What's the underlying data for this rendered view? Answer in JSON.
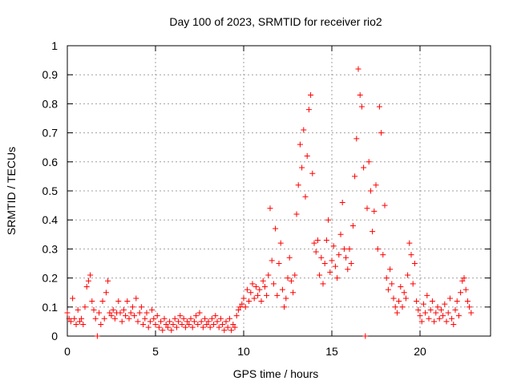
{
  "chart_data": {
    "type": "scatter",
    "title": "Day 100 of 2023, SRMTID for receiver rio2",
    "xlabel": "GPS time / hours",
    "ylabel": "SRMTID / TECUs",
    "xlim": [
      0,
      24
    ],
    "ylim": [
      0,
      1
    ],
    "xticks": [
      0,
      5,
      10,
      15,
      20
    ],
    "yticks": [
      0,
      0.1,
      0.2,
      0.3,
      0.4,
      0.5,
      0.6,
      0.7,
      0.8,
      0.9,
      1
    ],
    "xtick_labels": [
      "0",
      "5",
      "10",
      "15",
      "20"
    ],
    "ytick_labels": [
      "0",
      "0.1",
      "0.2",
      "0.3",
      "0.4",
      "0.5",
      "0.6",
      "0.7",
      "0.8",
      "0.9",
      "1"
    ],
    "grid": true,
    "legend": "none",
    "marker": "plus",
    "color": "#ff0000",
    "series": [
      {
        "name": "SRMTID",
        "points": [
          [
            0.0,
            0.08
          ],
          [
            0.1,
            0.06
          ],
          [
            0.2,
            0.05
          ],
          [
            0.3,
            0.13
          ],
          [
            0.4,
            0.06
          ],
          [
            0.5,
            0.04
          ],
          [
            0.6,
            0.09
          ],
          [
            0.7,
            0.05
          ],
          [
            0.8,
            0.06
          ],
          [
            0.9,
            0.04
          ],
          [
            1.0,
            0.1
          ],
          [
            1.1,
            0.17
          ],
          [
            1.2,
            0.19
          ],
          [
            1.3,
            0.21
          ],
          [
            1.4,
            0.12
          ],
          [
            1.5,
            0.09
          ],
          [
            1.6,
            0.06
          ],
          [
            1.7,
            0.0
          ],
          [
            1.8,
            0.08
          ],
          [
            1.9,
            0.04
          ],
          [
            2.0,
            0.12
          ],
          [
            2.1,
            0.06
          ],
          [
            2.2,
            0.15
          ],
          [
            2.3,
            0.19
          ],
          [
            2.4,
            0.08
          ],
          [
            2.5,
            0.07
          ],
          [
            2.6,
            0.09
          ],
          [
            2.7,
            0.06
          ],
          [
            2.8,
            0.08
          ],
          [
            2.9,
            0.12
          ],
          [
            3.0,
            0.08
          ],
          [
            3.1,
            0.05
          ],
          [
            3.2,
            0.09
          ],
          [
            3.3,
            0.07
          ],
          [
            3.4,
            0.12
          ],
          [
            3.5,
            0.06
          ],
          [
            3.6,
            0.08
          ],
          [
            3.7,
            0.1
          ],
          [
            3.8,
            0.07
          ],
          [
            3.9,
            0.13
          ],
          [
            4.0,
            0.05
          ],
          [
            4.1,
            0.08
          ],
          [
            4.2,
            0.1
          ],
          [
            4.3,
            0.04
          ],
          [
            4.4,
            0.06
          ],
          [
            4.5,
            0.08
          ],
          [
            4.6,
            0.03
          ],
          [
            4.7,
            0.05
          ],
          [
            4.8,
            0.09
          ],
          [
            4.9,
            0.06
          ],
          [
            5.0,
            0.04
          ],
          [
            5.1,
            0.07
          ],
          [
            5.2,
            0.03
          ],
          [
            5.3,
            0.05
          ],
          [
            5.4,
            0.02
          ],
          [
            5.5,
            0.06
          ],
          [
            5.6,
            0.04
          ],
          [
            5.7,
            0.03
          ],
          [
            5.8,
            0.05
          ],
          [
            5.9,
            0.02
          ],
          [
            6.0,
            0.04
          ],
          [
            6.1,
            0.06
          ],
          [
            6.2,
            0.03
          ],
          [
            6.3,
            0.05
          ],
          [
            6.4,
            0.07
          ],
          [
            6.5,
            0.04
          ],
          [
            6.6,
            0.06
          ],
          [
            6.7,
            0.03
          ],
          [
            6.8,
            0.05
          ],
          [
            6.9,
            0.04
          ],
          [
            7.0,
            0.06
          ],
          [
            7.1,
            0.03
          ],
          [
            7.2,
            0.05
          ],
          [
            7.3,
            0.07
          ],
          [
            7.4,
            0.04
          ],
          [
            7.5,
            0.08
          ],
          [
            7.6,
            0.05
          ],
          [
            7.7,
            0.03
          ],
          [
            7.8,
            0.06
          ],
          [
            7.9,
            0.04
          ],
          [
            8.0,
            0.05
          ],
          [
            8.1,
            0.03
          ],
          [
            8.2,
            0.06
          ],
          [
            8.3,
            0.04
          ],
          [
            8.4,
            0.07
          ],
          [
            8.5,
            0.05
          ],
          [
            8.6,
            0.03
          ],
          [
            8.7,
            0.06
          ],
          [
            8.8,
            0.04
          ],
          [
            8.9,
            0.02
          ],
          [
            9.0,
            0.05
          ],
          [
            9.1,
            0.03
          ],
          [
            9.2,
            0.06
          ],
          [
            9.3,
            0.02
          ],
          [
            9.4,
            0.04
          ],
          [
            9.5,
            0.03
          ],
          [
            9.6,
            0.07
          ],
          [
            9.7,
            0.09
          ],
          [
            9.8,
            0.1
          ],
          [
            9.9,
            0.11
          ],
          [
            10.0,
            0.13
          ],
          [
            10.1,
            0.1
          ],
          [
            10.2,
            0.16
          ],
          [
            10.3,
            0.12
          ],
          [
            10.4,
            0.15
          ],
          [
            10.5,
            0.18
          ],
          [
            10.6,
            0.13
          ],
          [
            10.7,
            0.17
          ],
          [
            10.8,
            0.14
          ],
          [
            10.9,
            0.16
          ],
          [
            11.0,
            0.12
          ],
          [
            11.1,
            0.19
          ],
          [
            11.2,
            0.17
          ],
          [
            11.3,
            0.14
          ],
          [
            11.4,
            0.21
          ],
          [
            11.5,
            0.44
          ],
          [
            11.6,
            0.26
          ],
          [
            11.7,
            0.18
          ],
          [
            11.8,
            0.37
          ],
          [
            11.9,
            0.14
          ],
          [
            12.0,
            0.25
          ],
          [
            12.1,
            0.32
          ],
          [
            12.2,
            0.16
          ],
          [
            12.3,
            0.1
          ],
          [
            12.4,
            0.13
          ],
          [
            12.5,
            0.2
          ],
          [
            12.6,
            0.27
          ],
          [
            12.7,
            0.19
          ],
          [
            12.8,
            0.15
          ],
          [
            12.9,
            0.21
          ],
          [
            13.0,
            0.42
          ],
          [
            13.1,
            0.52
          ],
          [
            13.2,
            0.66
          ],
          [
            13.3,
            0.58
          ],
          [
            13.4,
            0.71
          ],
          [
            13.5,
            0.48
          ],
          [
            13.6,
            0.62
          ],
          [
            13.7,
            0.78
          ],
          [
            13.8,
            0.83
          ],
          [
            13.9,
            0.56
          ],
          [
            14.0,
            0.32
          ],
          [
            14.1,
            0.29
          ],
          [
            14.2,
            0.33
          ],
          [
            14.3,
            0.21
          ],
          [
            14.4,
            0.27
          ],
          [
            14.5,
            0.18
          ],
          [
            14.6,
            0.25
          ],
          [
            14.7,
            0.33
          ],
          [
            14.8,
            0.4
          ],
          [
            14.9,
            0.22
          ],
          [
            15.0,
            0.26
          ],
          [
            15.1,
            0.31
          ],
          [
            15.2,
            0.24
          ],
          [
            15.3,
            0.2
          ],
          [
            15.4,
            0.28
          ],
          [
            15.5,
            0.35
          ],
          [
            15.6,
            0.46
          ],
          [
            15.7,
            0.3
          ],
          [
            15.8,
            0.27
          ],
          [
            15.9,
            0.23
          ],
          [
            16.0,
            0.3
          ],
          [
            16.1,
            0.25
          ],
          [
            16.2,
            0.38
          ],
          [
            16.3,
            0.55
          ],
          [
            16.4,
            0.68
          ],
          [
            16.5,
            0.92
          ],
          [
            16.6,
            0.83
          ],
          [
            16.7,
            0.79
          ],
          [
            16.8,
            0.58
          ],
          [
            16.9,
            0.0
          ],
          [
            17.0,
            0.44
          ],
          [
            17.1,
            0.6
          ],
          [
            17.2,
            0.5
          ],
          [
            17.3,
            0.36
          ],
          [
            17.4,
            0.43
          ],
          [
            17.5,
            0.52
          ],
          [
            17.6,
            0.3
          ],
          [
            17.7,
            0.79
          ],
          [
            17.8,
            0.7
          ],
          [
            17.9,
            0.28
          ],
          [
            18.0,
            0.45
          ],
          [
            18.1,
            0.2
          ],
          [
            18.2,
            0.16
          ],
          [
            18.3,
            0.23
          ],
          [
            18.4,
            0.18
          ],
          [
            18.5,
            0.13
          ],
          [
            18.6,
            0.1
          ],
          [
            18.7,
            0.08
          ],
          [
            18.8,
            0.12
          ],
          [
            18.9,
            0.17
          ],
          [
            19.0,
            0.1
          ],
          [
            19.1,
            0.15
          ],
          [
            19.2,
            0.13
          ],
          [
            19.3,
            0.21
          ],
          [
            19.4,
            0.32
          ],
          [
            19.5,
            0.28
          ],
          [
            19.6,
            0.18
          ],
          [
            19.7,
            0.25
          ],
          [
            19.8,
            0.12
          ],
          [
            19.9,
            0.09
          ],
          [
            20.0,
            0.07
          ],
          [
            20.1,
            0.05
          ],
          [
            20.2,
            0.11
          ],
          [
            20.3,
            0.08
          ],
          [
            20.4,
            0.14
          ],
          [
            20.5,
            0.06
          ],
          [
            20.6,
            0.09
          ],
          [
            20.7,
            0.12
          ],
          [
            20.8,
            0.05
          ],
          [
            20.9,
            0.08
          ],
          [
            21.0,
            0.1
          ],
          [
            21.1,
            0.06
          ],
          [
            21.2,
            0.09
          ],
          [
            21.3,
            0.07
          ],
          [
            21.4,
            0.11
          ],
          [
            21.5,
            0.05
          ],
          [
            21.6,
            0.08
          ],
          [
            21.7,
            0.13
          ],
          [
            21.8,
            0.06
          ],
          [
            21.9,
            0.04
          ],
          [
            22.0,
            0.09
          ],
          [
            22.1,
            0.12
          ],
          [
            22.2,
            0.07
          ],
          [
            22.3,
            0.15
          ],
          [
            22.4,
            0.19
          ],
          [
            22.5,
            0.2
          ],
          [
            22.6,
            0.16
          ],
          [
            22.7,
            0.12
          ],
          [
            22.8,
            0.1
          ],
          [
            22.9,
            0.08
          ]
        ]
      }
    ]
  }
}
